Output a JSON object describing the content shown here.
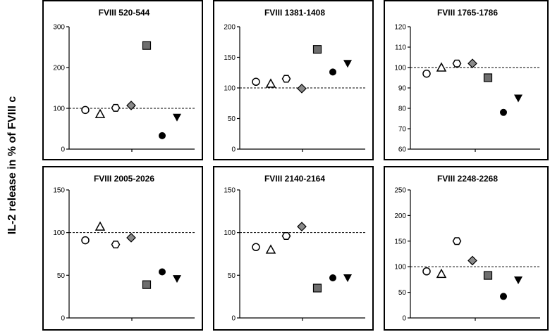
{
  "figure": {
    "ylabel": "IL-2 release in % of FVIII c"
  },
  "chart_data": [
    {
      "type": "scatter",
      "title": "FVIII 520-544",
      "ylim": [
        0,
        300
      ],
      "yticks": [
        0,
        100,
        200,
        300
      ],
      "reference_line": 100,
      "points": [
        {
          "marker": "circle-open",
          "value": 96
        },
        {
          "marker": "triangle-open",
          "value": 86
        },
        {
          "marker": "hexagon-open",
          "value": 101
        },
        {
          "marker": "diamond-gray",
          "value": 107
        },
        {
          "marker": "square-gray",
          "value": 254
        },
        {
          "marker": "circle-filled",
          "value": 33
        },
        {
          "marker": "triangle-down-filled",
          "value": 78
        }
      ]
    },
    {
      "type": "scatter",
      "title": "FVIII 1381-1408",
      "ylim": [
        0,
        200
      ],
      "yticks": [
        0,
        50,
        100,
        150,
        200
      ],
      "reference_line": 100,
      "points": [
        {
          "marker": "circle-open",
          "value": 110
        },
        {
          "marker": "triangle-open",
          "value": 107
        },
        {
          "marker": "hexagon-open",
          "value": 115
        },
        {
          "marker": "diamond-gray",
          "value": 99
        },
        {
          "marker": "square-gray",
          "value": 163
        },
        {
          "marker": "circle-filled",
          "value": 126
        },
        {
          "marker": "triangle-down-filled",
          "value": 140
        }
      ]
    },
    {
      "type": "scatter",
      "title": "FVIII 1765-1786",
      "ylim": [
        60,
        120
      ],
      "yticks": [
        60,
        70,
        80,
        90,
        100,
        110,
        120
      ],
      "reference_line": 100,
      "points": [
        {
          "marker": "circle-open",
          "value": 97
        },
        {
          "marker": "triangle-open",
          "value": 100
        },
        {
          "marker": "hexagon-open",
          "value": 102
        },
        {
          "marker": "diamond-gray",
          "value": 102
        },
        {
          "marker": "square-gray",
          "value": 95
        },
        {
          "marker": "circle-filled",
          "value": 78
        },
        {
          "marker": "triangle-down-filled",
          "value": 85
        }
      ]
    },
    {
      "type": "scatter",
      "title": "FVIII 2005-2026",
      "ylim": [
        0,
        150
      ],
      "yticks": [
        0,
        50,
        100,
        150
      ],
      "reference_line": 100,
      "points": [
        {
          "marker": "circle-open",
          "value": 91
        },
        {
          "marker": "triangle-open",
          "value": 107
        },
        {
          "marker": "hexagon-open",
          "value": 86
        },
        {
          "marker": "diamond-gray",
          "value": 94
        },
        {
          "marker": "square-gray",
          "value": 39
        },
        {
          "marker": "circle-filled",
          "value": 54
        },
        {
          "marker": "triangle-down-filled",
          "value": 46
        }
      ]
    },
    {
      "type": "scatter",
      "title": "FVIII 2140-2164",
      "ylim": [
        0,
        150
      ],
      "yticks": [
        0,
        50,
        100,
        150
      ],
      "reference_line": 100,
      "points": [
        {
          "marker": "circle-open",
          "value": 83
        },
        {
          "marker": "triangle-open",
          "value": 80
        },
        {
          "marker": "hexagon-open",
          "value": 96
        },
        {
          "marker": "diamond-gray",
          "value": 107
        },
        {
          "marker": "square-gray",
          "value": 35
        },
        {
          "marker": "circle-filled",
          "value": 47
        },
        {
          "marker": "triangle-down-filled",
          "value": 47
        }
      ]
    },
    {
      "type": "scatter",
      "title": "FVIII 2248-2268",
      "ylim": [
        0,
        250
      ],
      "yticks": [
        0,
        50,
        100,
        150,
        200,
        250
      ],
      "reference_line": 100,
      "points": [
        {
          "marker": "circle-open",
          "value": 91
        },
        {
          "marker": "triangle-open",
          "value": 86
        },
        {
          "marker": "hexagon-open",
          "value": 150
        },
        {
          "marker": "diamond-gray",
          "value": 112
        },
        {
          "marker": "square-gray",
          "value": 83
        },
        {
          "marker": "circle-filled",
          "value": 42
        },
        {
          "marker": "triangle-down-filled",
          "value": 74
        }
      ]
    }
  ]
}
